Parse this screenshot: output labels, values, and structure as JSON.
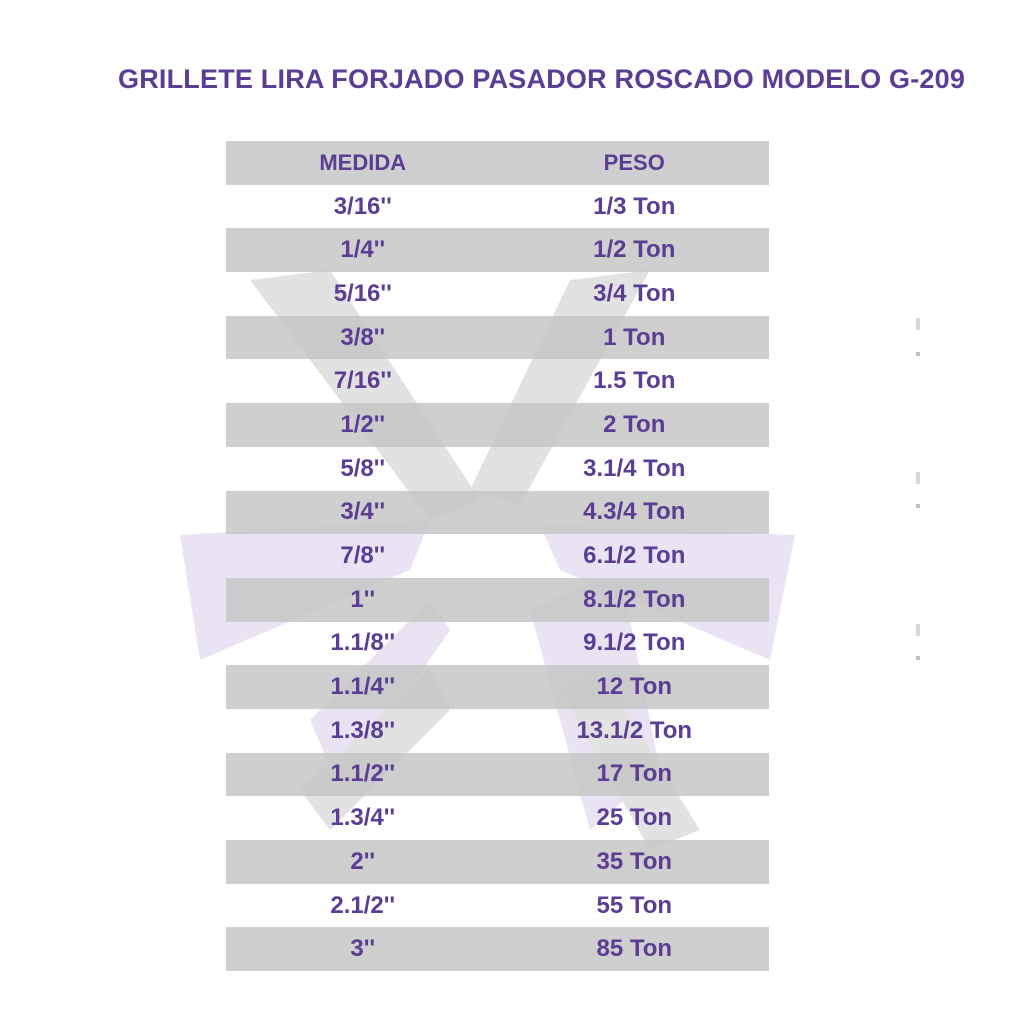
{
  "title": "GRILLETE LIRA FORJADO PASADOR ROSCADO MODELO G-209",
  "table": {
    "headers": {
      "medida": "MEDIDA",
      "peso": "PESO"
    },
    "rows": [
      {
        "medida": "3/16''",
        "peso": "1/3 Ton"
      },
      {
        "medida": "1/4''",
        "peso": "1/2 Ton"
      },
      {
        "medida": "5/16''",
        "peso": "3/4 Ton"
      },
      {
        "medida": "3/8''",
        "peso": "1 Ton"
      },
      {
        "medida": "7/16''",
        "peso": "1.5 Ton"
      },
      {
        "medida": "1/2''",
        "peso": "2 Ton"
      },
      {
        "medida": "5/8''",
        "peso": "3.1/4 Ton"
      },
      {
        "medida": "3/4''",
        "peso": "4.3/4 Ton"
      },
      {
        "medida": "7/8''",
        "peso": "6.1/2 Ton"
      },
      {
        "medida": "1''",
        "peso": "8.1/2 Ton"
      },
      {
        "medida": "1.1/8''",
        "peso": "9.1/2 Ton"
      },
      {
        "medida": "1.1/4''",
        "peso": "12 Ton"
      },
      {
        "medida": "1.3/8''",
        "peso": "13.1/2 Ton"
      },
      {
        "medida": "1.1/2''",
        "peso": "17 Ton"
      },
      {
        "medida": "1.3/4''",
        "peso": "25 Ton"
      },
      {
        "medida": "2''",
        "peso": "35 Ton"
      },
      {
        "medida": "2.1/2''",
        "peso": "55 Ton"
      },
      {
        "medida": "3''",
        "peso": "85 Ton"
      }
    ]
  },
  "colors": {
    "text": "#5b3d94",
    "shade": "#c4c4c4",
    "watermark_gray": "#e2e2e2",
    "watermark_lavender": "#e9e3f3"
  }
}
